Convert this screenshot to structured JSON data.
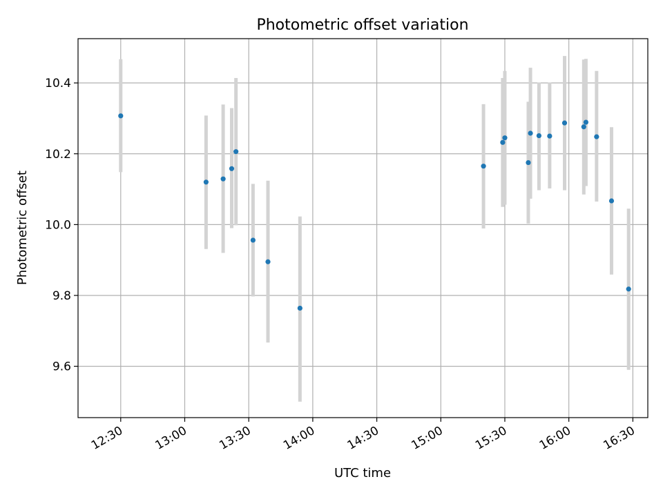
{
  "chart_data": {
    "type": "scatter",
    "title": "Photometric offset variation",
    "xlabel": "UTC time",
    "ylabel": "Photometric offset",
    "grid": true,
    "x_axis": {
      "unit": "time",
      "xlim": [
        "12:10",
        "16:37"
      ],
      "ticks": [
        "12:30",
        "13:00",
        "13:30",
        "14:00",
        "14:30",
        "15:00",
        "15:30",
        "16:00",
        "16:30"
      ]
    },
    "y_axis": {
      "ylim": [
        9.455,
        10.525
      ],
      "ticks": [
        9.6,
        9.8,
        10.0,
        10.2,
        10.4
      ],
      "tick_labels": [
        "9.6",
        "9.8",
        "10.0",
        "10.2",
        "10.4"
      ]
    },
    "colors": {
      "points": "#1f77b4",
      "error_bars": "#d3d3d3"
    },
    "points": [
      {
        "x": "12:30",
        "y": 10.307,
        "lo": 10.148,
        "hi": 10.467
      },
      {
        "x": "13:10",
        "y": 10.12,
        "lo": 9.931,
        "hi": 10.308
      },
      {
        "x": "13:18",
        "y": 10.129,
        "lo": 9.92,
        "hi": 10.339
      },
      {
        "x": "13:22",
        "y": 10.158,
        "lo": 9.99,
        "hi": 10.329
      },
      {
        "x": "13:24",
        "y": 10.206,
        "lo": 9.998,
        "hi": 10.414
      },
      {
        "x": "13:32",
        "y": 9.956,
        "lo": 9.797,
        "hi": 10.115
      },
      {
        "x": "13:39",
        "y": 9.895,
        "lo": 9.667,
        "hi": 10.124
      },
      {
        "x": "13:54",
        "y": 9.764,
        "lo": 9.5,
        "hi": 10.023
      },
      {
        "x": "15:20",
        "y": 10.165,
        "lo": 9.989,
        "hi": 10.34
      },
      {
        "x": "15:29",
        "y": 10.232,
        "lo": 10.05,
        "hi": 10.414
      },
      {
        "x": "15:30",
        "y": 10.245,
        "lo": 10.056,
        "hi": 10.434
      },
      {
        "x": "15:41",
        "y": 10.175,
        "lo": 10.003,
        "hi": 10.347
      },
      {
        "x": "15:42",
        "y": 10.258,
        "lo": 10.073,
        "hi": 10.443
      },
      {
        "x": "15:46",
        "y": 10.251,
        "lo": 10.097,
        "hi": 10.401
      },
      {
        "x": "15:51",
        "y": 10.25,
        "lo": 10.102,
        "hi": 10.401
      },
      {
        "x": "15:58",
        "y": 10.287,
        "lo": 10.097,
        "hi": 10.476
      },
      {
        "x": "16:07",
        "y": 10.276,
        "lo": 10.085,
        "hi": 10.466
      },
      {
        "x": "16:08",
        "y": 10.289,
        "lo": 10.109,
        "hi": 10.468
      },
      {
        "x": "16:13",
        "y": 10.248,
        "lo": 10.065,
        "hi": 10.434
      },
      {
        "x": "16:20",
        "y": 10.067,
        "lo": 9.859,
        "hi": 10.275
      },
      {
        "x": "16:28",
        "y": 9.818,
        "lo": 9.59,
        "hi": 10.045
      }
    ]
  }
}
